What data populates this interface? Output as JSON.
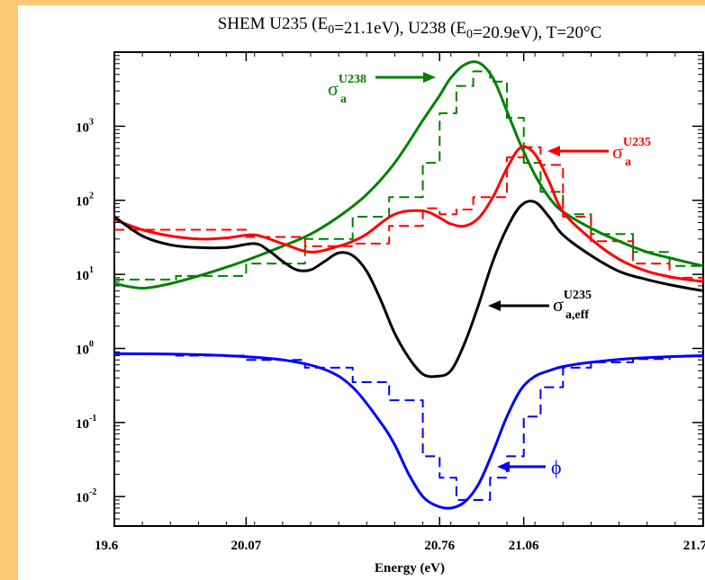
{
  "chart_data": {
    "type": "line",
    "title": "SHEM  U235 (E0=21.1eV), U238 (E0=20.9eV), T=20°C",
    "xlabel": "Energy (eV)",
    "ylabel": "",
    "xlim": [
      19.6,
      21.7
    ],
    "ylim": [
      0.004,
      10000
    ],
    "yscale": "log",
    "grid": false,
    "x_ticks": [
      {
        "value": 19.6,
        "label": "19.6"
      },
      {
        "value": 20.07,
        "label": "20.07"
      },
      {
        "value": 20.76,
        "label": "20.76"
      },
      {
        "value": 21.06,
        "label": "21.06"
      },
      {
        "value": 21.7,
        "label": "21.7"
      }
    ],
    "y_ticks": [
      {
        "value": 0.01,
        "base": "10",
        "exp": "-2"
      },
      {
        "value": 0.1,
        "base": "10",
        "exp": "-1"
      },
      {
        "value": 1,
        "base": "10",
        "exp": "0"
      },
      {
        "value": 10,
        "base": "10",
        "exp": "1"
      },
      {
        "value": 100,
        "base": "10",
        "exp": "2"
      },
      {
        "value": 1000,
        "base": "10",
        "exp": "3"
      }
    ],
    "bin_edges": [
      19.6,
      19.82,
      20.07,
      20.28,
      20.45,
      20.58,
      20.7,
      20.76,
      20.82,
      20.88,
      20.94,
      21.0,
      21.06,
      21.12,
      21.2,
      21.3,
      21.45,
      21.58,
      21.7
    ],
    "series": [
      {
        "key": "u238",
        "color": "#008000",
        "style": "solid",
        "x": [
          19.6,
          19.7,
          19.8,
          19.9,
          20.0,
          20.1,
          20.2,
          20.3,
          20.4,
          20.5,
          20.6,
          20.7,
          20.76,
          20.8,
          20.85,
          20.9,
          20.95,
          21.0,
          21.05,
          21.1,
          21.15,
          21.2,
          21.3,
          21.4,
          21.5,
          21.6,
          21.7
        ],
        "y": [
          7.5,
          6.5,
          7.5,
          9.5,
          12.5,
          17,
          24,
          35,
          60,
          120,
          320,
          1200,
          2600,
          4500,
          6800,
          7200,
          4500,
          1600,
          550,
          220,
          110,
          70,
          42,
          28,
          20,
          16,
          13
        ]
      },
      {
        "key": "u238-group",
        "color": "#008000",
        "style": "dashed",
        "values": [
          8.5,
          9.5,
          14,
          30,
          60,
          110,
          320,
          1500,
          3500,
          5500,
          4000,
          1300,
          320,
          130,
          65,
          35,
          20,
          13
        ]
      },
      {
        "key": "u235",
        "color": "#ff0000",
        "style": "solid",
        "x": [
          19.6,
          19.7,
          19.8,
          19.9,
          20.0,
          20.1,
          20.2,
          20.3,
          20.4,
          20.45,
          20.5,
          20.6,
          20.7,
          20.76,
          20.8,
          20.85,
          20.9,
          20.95,
          21.0,
          21.05,
          21.1,
          21.15,
          21.2,
          21.3,
          21.4,
          21.5,
          21.6,
          21.7
        ],
        "y": [
          55,
          40,
          33,
          30,
          31,
          34,
          26,
          20,
          24,
          28,
          35,
          65,
          72,
          58,
          48,
          45,
          58,
          110,
          270,
          520,
          420,
          180,
          70,
          30,
          16,
          11,
          9,
          8
        ],
        "label_base": "σ",
        "label_sub": "a",
        "label_sup": "U235"
      },
      {
        "key": "u235-group",
        "color": "#ff0000",
        "style": "dashed",
        "values": [
          40,
          40,
          32,
          24,
          26,
          45,
          78,
          65,
          75,
          110,
          110,
          380,
          520,
          300,
          60,
          28,
          14,
          9
        ]
      },
      {
        "key": "u235-eff",
        "color": "#000000",
        "style": "solid",
        "x": [
          19.6,
          19.7,
          19.8,
          19.9,
          20.0,
          20.1,
          20.15,
          20.2,
          20.25,
          20.3,
          20.35,
          20.4,
          20.45,
          20.5,
          20.55,
          20.6,
          20.65,
          20.7,
          20.75,
          20.8,
          20.85,
          20.9,
          20.95,
          21.0,
          21.05,
          21.1,
          21.15,
          21.2,
          21.3,
          21.4,
          21.5,
          21.6,
          21.7
        ],
        "y": [
          60,
          33,
          25,
          23,
          23,
          26,
          21,
          15,
          11.5,
          11.5,
          15,
          19.5,
          18,
          11,
          4.5,
          1.6,
          0.75,
          0.45,
          0.42,
          0.5,
          1.2,
          4,
          15,
          42,
          85,
          95,
          60,
          34,
          18,
          11,
          8.5,
          7,
          6
        ],
        "label_base": "σ",
        "label_sub": "a,eff",
        "label_sup": "U235"
      },
      {
        "key": "phi",
        "color": "#0000ff",
        "style": "solid",
        "x": [
          19.6,
          19.8,
          20.0,
          20.2,
          20.35,
          20.45,
          20.55,
          20.6,
          20.65,
          20.7,
          20.75,
          20.8,
          20.85,
          20.9,
          20.95,
          21.0,
          21.05,
          21.1,
          21.15,
          21.2,
          21.3,
          21.4,
          21.5,
          21.6,
          21.7
        ],
        "y": [
          0.85,
          0.84,
          0.8,
          0.7,
          0.52,
          0.3,
          0.1,
          0.05,
          0.02,
          0.01,
          0.0075,
          0.007,
          0.0085,
          0.015,
          0.04,
          0.12,
          0.28,
          0.42,
          0.5,
          0.57,
          0.65,
          0.71,
          0.75,
          0.78,
          0.8
        ],
        "label_base": "ϕ"
      },
      {
        "key": "phi-group",
        "color": "#0000ff",
        "style": "dashed",
        "values": [
          0.84,
          0.8,
          0.7,
          0.55,
          0.35,
          0.2,
          0.035,
          0.018,
          0.009,
          0.009,
          0.018,
          0.035,
          0.12,
          0.3,
          0.55,
          0.65,
          0.72,
          0.78
        ]
      }
    ],
    "annotations": [
      {
        "series": "u238",
        "base": "σ",
        "sub": "a",
        "sup": "U238",
        "color": "#008000"
      },
      {
        "series": "u235",
        "base": "σ",
        "sub": "a",
        "sup": "U235",
        "color": "#ff0000"
      },
      {
        "series": "u235-eff",
        "base": "σ",
        "sub": "a,eff",
        "sup": "U235",
        "color": "#000000"
      },
      {
        "series": "phi",
        "base": "ϕ",
        "sub": "",
        "sup": "",
        "color": "#0000ff"
      }
    ]
  }
}
